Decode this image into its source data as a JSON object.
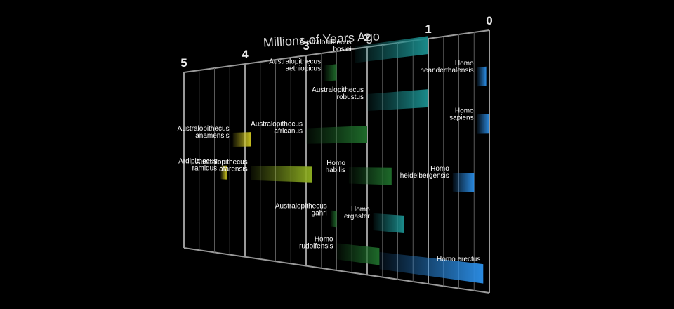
{
  "chart_data": {
    "type": "bar",
    "title": "",
    "xlabel": "Millions of Years Ago",
    "ylabel": "",
    "xlim": [
      5,
      0
    ],
    "x_ticks": [
      "5",
      "4",
      "3",
      "2",
      "1",
      "0"
    ],
    "grid": true,
    "colors": {
      "yellow": "#c8c020",
      "olive": "#8aaa20",
      "green": "#1e6a2a",
      "teal": "#1a8a8a",
      "blue": "#2a8ae0"
    },
    "series": [
      {
        "label_lines": [
          "Ardipithecus",
          "ramidus"
        ],
        "start": 4.4,
        "end": 4.3,
        "row": 6.5,
        "color": "yellow"
      },
      {
        "label_lines": [
          "Australopithecus",
          "anamensis"
        ],
        "start": 4.2,
        "end": 3.9,
        "row": 4.5,
        "color": "yellow"
      },
      {
        "label_lines": [
          "Australopithecus",
          "afarensis"
        ],
        "start": 3.9,
        "end": 2.9,
        "row": 6.5,
        "color": "olive"
      },
      {
        "label_lines": [
          "Australopithecus",
          "aethiopicus"
        ],
        "start": 2.7,
        "end": 2.5,
        "row": 1.1,
        "color": "green"
      },
      {
        "label_lines": [
          "Australopithecus",
          "africanus"
        ],
        "start": 3.0,
        "end": 2.0,
        "row": 4.4,
        "color": "green"
      },
      {
        "label_lines": [
          "Australopithecus",
          "gahri"
        ],
        "start": 2.6,
        "end": 2.5,
        "row": 8.8,
        "color": "green"
      },
      {
        "label_lines": [
          "Australopithecus",
          "robustus"
        ],
        "start": 2.0,
        "end": 1.0,
        "row": 2.8,
        "color": "teal"
      },
      {
        "label_lines": [
          "Australopithecus",
          "bosiei"
        ],
        "start": 2.2,
        "end": 1.0,
        "row": 0.3,
        "color": "teal"
      },
      {
        "label_lines": [
          "Homo",
          "habilis"
        ],
        "start": 2.3,
        "end": 1.6,
        "row": 6.5,
        "color": "green"
      },
      {
        "label_lines": [
          "Homo",
          "rudolfensis"
        ],
        "start": 2.5,
        "end": 1.8,
        "row": 10.5,
        "color": "green"
      },
      {
        "label_lines": [
          "Homo",
          "ergaster"
        ],
        "start": 1.9,
        "end": 1.4,
        "row": 8.8,
        "color": "teal"
      },
      {
        "label_lines": [
          "Homo erectus"
        ],
        "start": 1.8,
        "end": 0.1,
        "row": 10.7,
        "color": "blue"
      },
      {
        "label_lines": [
          "Homo",
          "neanderthalensis"
        ],
        "start": 0.2,
        "end": 0.05,
        "row": 2.0,
        "color": "blue"
      },
      {
        "label_lines": [
          "Homo",
          "sapiens"
        ],
        "start": 0.2,
        "end": 0.0,
        "row": 4.1,
        "color": "blue"
      },
      {
        "label_lines": [
          "Homo",
          "heidelbergensis"
        ],
        "start": 0.6,
        "end": 0.25,
        "row": 6.7,
        "color": "blue"
      }
    ]
  }
}
